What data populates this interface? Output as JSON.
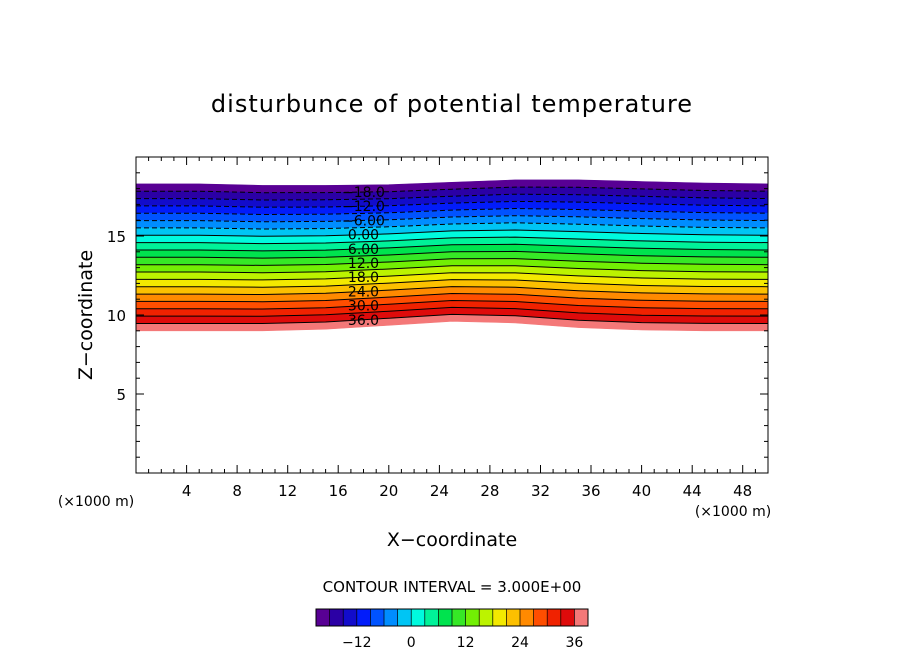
{
  "chart_data": {
    "type": "heatmap",
    "title": "disturbunce of potential temperature",
    "xlabel": "X−coordinate",
    "ylabel": "Z−coordinate",
    "x_unit": "(×1000 m)",
    "y_unit": "(×1000 m)",
    "xlim": [
      0,
      50
    ],
    "ylim": [
      0,
      20
    ],
    "x_ticks": [
      4,
      8,
      12,
      16,
      20,
      24,
      28,
      32,
      36,
      40,
      44,
      48
    ],
    "y_ticks": [
      5,
      10,
      15
    ],
    "contour_interval_label": "CONTOUR INTERVAL = 3.000E+00",
    "contour_interval": 3,
    "level_min": -21,
    "level_max": 39,
    "field_top_z": [
      18.3,
      18.3,
      18.2,
      18.2,
      18.25,
      18.4,
      18.55,
      18.55,
      18.45,
      18.35,
      18.3
    ],
    "field_bottom_z": [
      9.0,
      9.0,
      9.0,
      9.1,
      9.35,
      9.6,
      9.5,
      9.2,
      9.05,
      9.0,
      9.0
    ],
    "field_x": [
      0,
      5,
      10,
      15,
      20,
      25,
      30,
      35,
      40,
      45,
      50
    ],
    "contour_labels": [
      {
        "text": "−18.0",
        "value": -18
      },
      {
        "text": "−12.0",
        "value": -12
      },
      {
        "text": "−6.00",
        "value": -6
      },
      {
        "text": "0.00",
        "value": 0
      },
      {
        "text": "6.00",
        "value": 6
      },
      {
        "text": "12.0",
        "value": 12
      },
      {
        "text": "18.0",
        "value": 18
      },
      {
        "text": "24.0",
        "value": 24
      },
      {
        "text": "30.0",
        "value": 30
      },
      {
        "text": "36.0",
        "value": 36
      }
    ],
    "colorbar_ticks": [
      {
        "label": "−12",
        "value": -12
      },
      {
        "label": "0",
        "value": 0
      },
      {
        "label": "12",
        "value": 12
      },
      {
        "label": "24",
        "value": 24
      },
      {
        "label": "36",
        "value": 36
      }
    ],
    "colorbar_range": [
      -21,
      39
    ],
    "negative_contours_dashed": true
  }
}
